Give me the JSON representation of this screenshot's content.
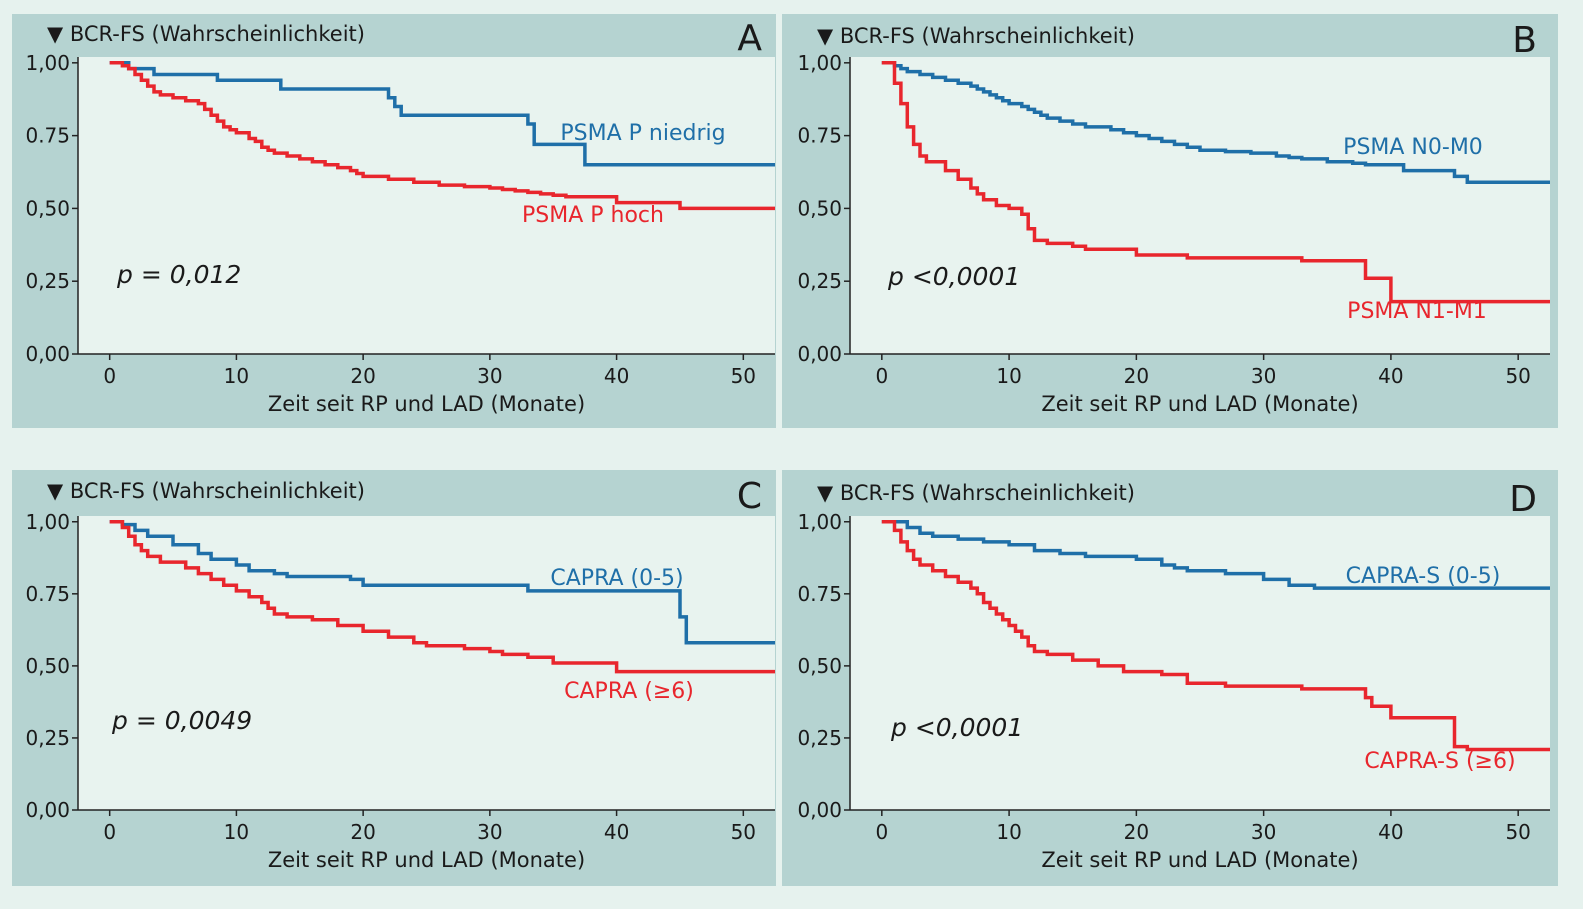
{
  "colors": {
    "page_bg": "#e6f2ee",
    "panel_bg": "#b5d3d1",
    "plot_bg": "#e8f3ef",
    "blue": "#1f6fa8",
    "red": "#e8262d",
    "text": "#1a1a1a"
  },
  "chart_data": [
    {
      "panel": "A",
      "type": "line",
      "step": true,
      "ylabel": "▼ BCR-FS (Wahrscheinlichkeit)",
      "xlabel": "Zeit seit RP und LAD (Monate)",
      "xlim": [
        -2.5,
        52.5
      ],
      "ylim": [
        0,
        1.02
      ],
      "x_ticks": [
        0,
        10,
        20,
        30,
        40,
        50
      ],
      "x_tick_labels": [
        "0",
        "10",
        "20",
        "30",
        "40",
        "50"
      ],
      "y_ticks": [
        0,
        0.25,
        0.5,
        0.75,
        1.0
      ],
      "y_tick_labels": [
        "0,00",
        "0,25",
        "0,50",
        "0.75",
        "1,00"
      ],
      "p_value": "p = 0,012",
      "series": [
        {
          "name": "PSMA P niedrig",
          "color": "blue",
          "x": [
            0,
            1.5,
            3.5,
            8.5,
            13.5,
            22,
            22.5,
            23,
            33,
            33.5,
            37.5,
            52.5
          ],
          "y": [
            1.0,
            0.98,
            0.96,
            0.94,
            0.91,
            0.88,
            0.85,
            0.82,
            0.79,
            0.72,
            0.65,
            0.65
          ]
        },
        {
          "name": "PSMA P hoch",
          "color": "red",
          "x": [
            0,
            1,
            1.5,
            2,
            2.5,
            3,
            3.5,
            4,
            5,
            6,
            7,
            7.5,
            8,
            8.5,
            9,
            9.5,
            10,
            11,
            11.5,
            12,
            12.5,
            13,
            14,
            15,
            16,
            17,
            18,
            19,
            19.5,
            20,
            22,
            24,
            26,
            28,
            30,
            31,
            32,
            33,
            34,
            35,
            36,
            40,
            45,
            52.5
          ],
          "y": [
            1.0,
            0.99,
            0.98,
            0.96,
            0.94,
            0.92,
            0.9,
            0.89,
            0.88,
            0.87,
            0.86,
            0.84,
            0.82,
            0.8,
            0.78,
            0.77,
            0.76,
            0.74,
            0.73,
            0.71,
            0.7,
            0.69,
            0.68,
            0.67,
            0.66,
            0.65,
            0.64,
            0.63,
            0.62,
            0.61,
            0.6,
            0.59,
            0.58,
            0.575,
            0.57,
            0.565,
            0.56,
            0.555,
            0.55,
            0.545,
            0.54,
            0.52,
            0.5,
            0.5
          ]
        }
      ]
    },
    {
      "panel": "B",
      "type": "line",
      "step": true,
      "ylabel": "▼ BCR-FS (Wahrscheinlichkeit)",
      "xlabel": "Zeit seit RP und LAD (Monate)",
      "xlim": [
        -2.5,
        52.5
      ],
      "ylim": [
        0,
        1.02
      ],
      "x_ticks": [
        0,
        10,
        20,
        30,
        40,
        50
      ],
      "x_tick_labels": [
        "0",
        "10",
        "20",
        "30",
        "40",
        "50"
      ],
      "y_ticks": [
        0,
        0.25,
        0.5,
        0.75,
        1.0
      ],
      "y_tick_labels": [
        "0,00",
        "0,25",
        "0,50",
        "0.75",
        "1,00"
      ],
      "p_value": "p <0,0001",
      "series": [
        {
          "name": "PSMA N0-M0",
          "color": "blue",
          "x": [
            0,
            1,
            1.5,
            2,
            3,
            4,
            5,
            6,
            7,
            7.5,
            8,
            8.5,
            9,
            9.5,
            10,
            11,
            11.5,
            12,
            12.5,
            13,
            14,
            15,
            16,
            18,
            19,
            20,
            21,
            22,
            23,
            24,
            25,
            27,
            29,
            31,
            32,
            33,
            35,
            37,
            38,
            41,
            45,
            46,
            52.5
          ],
          "y": [
            1.0,
            0.99,
            0.98,
            0.97,
            0.96,
            0.95,
            0.94,
            0.93,
            0.92,
            0.91,
            0.9,
            0.89,
            0.88,
            0.87,
            0.86,
            0.85,
            0.84,
            0.83,
            0.82,
            0.81,
            0.8,
            0.79,
            0.78,
            0.77,
            0.76,
            0.75,
            0.74,
            0.73,
            0.72,
            0.71,
            0.7,
            0.695,
            0.69,
            0.68,
            0.675,
            0.67,
            0.66,
            0.655,
            0.65,
            0.63,
            0.61,
            0.59,
            0.59
          ]
        },
        {
          "name": "PSMA N1-M1",
          "color": "red",
          "x": [
            0,
            1,
            1.5,
            2,
            2.5,
            3,
            3.5,
            5,
            6,
            7,
            7.5,
            8,
            9,
            10,
            11,
            11.5,
            12,
            13,
            15,
            16,
            20,
            24,
            33,
            38,
            40,
            52.5
          ],
          "y": [
            1.0,
            0.93,
            0.86,
            0.78,
            0.72,
            0.68,
            0.66,
            0.63,
            0.6,
            0.57,
            0.55,
            0.53,
            0.51,
            0.5,
            0.48,
            0.43,
            0.39,
            0.38,
            0.37,
            0.36,
            0.34,
            0.33,
            0.32,
            0.26,
            0.18,
            0.18
          ]
        }
      ]
    },
    {
      "panel": "C",
      "type": "line",
      "step": true,
      "ylabel": "▼ BCR-FS (Wahrscheinlichkeit)",
      "xlabel": "Zeit seit RP und LAD (Monate)",
      "xlim": [
        -2.5,
        52.5
      ],
      "ylim": [
        0,
        1.02
      ],
      "x_ticks": [
        0,
        10,
        20,
        30,
        40,
        50
      ],
      "x_tick_labels": [
        "0",
        "10",
        "20",
        "30",
        "40",
        "50"
      ],
      "y_ticks": [
        0,
        0.25,
        0.5,
        0.75,
        1.0
      ],
      "y_tick_labels": [
        "0,00",
        "0,25",
        "0,50",
        "0.75",
        "1,00"
      ],
      "p_value": "p = 0,0049",
      "series": [
        {
          "name": "CAPRA (0-5)",
          "color": "blue",
          "x": [
            0,
            1,
            2,
            3,
            5,
            7,
            8,
            10,
            11,
            13,
            14,
            19,
            20,
            33,
            45,
            45.5,
            52.5
          ],
          "y": [
            1.0,
            0.99,
            0.97,
            0.95,
            0.92,
            0.89,
            0.87,
            0.85,
            0.83,
            0.82,
            0.81,
            0.8,
            0.78,
            0.76,
            0.67,
            0.58,
            0.58
          ]
        },
        {
          "name": "CAPRA (≥6)",
          "color": "red",
          "x": [
            0,
            1,
            1.5,
            2,
            2.5,
            3,
            4,
            6,
            7,
            8,
            9,
            10,
            11,
            12,
            12.5,
            13,
            14,
            16,
            18,
            20,
            22,
            24,
            25,
            28,
            30,
            31,
            33,
            35,
            40,
            52.5
          ],
          "y": [
            1.0,
            0.98,
            0.95,
            0.92,
            0.9,
            0.88,
            0.86,
            0.84,
            0.82,
            0.8,
            0.78,
            0.76,
            0.74,
            0.72,
            0.7,
            0.68,
            0.67,
            0.66,
            0.64,
            0.62,
            0.6,
            0.58,
            0.57,
            0.56,
            0.55,
            0.54,
            0.53,
            0.51,
            0.48,
            0.48
          ]
        }
      ]
    },
    {
      "panel": "D",
      "type": "line",
      "step": true,
      "ylabel": "▼ BCR-FS (Wahrscheinlichkeit)",
      "xlabel": "Zeit seit RP und LAD (Monate)",
      "xlim": [
        -2.5,
        52.5
      ],
      "ylim": [
        0,
        1.02
      ],
      "x_ticks": [
        0,
        10,
        20,
        30,
        40,
        50
      ],
      "x_tick_labels": [
        "0",
        "10",
        "20",
        "30",
        "40",
        "50"
      ],
      "y_ticks": [
        0,
        0.25,
        0.5,
        0.75,
        1.0
      ],
      "y_tick_labels": [
        "0,00",
        "0,25",
        "0,50",
        "0.75",
        "1,00"
      ],
      "p_value": "p <0,0001",
      "series": [
        {
          "name": "CAPRA-S (0-5)",
          "color": "blue",
          "x": [
            0,
            2,
            3,
            4,
            6,
            8,
            10,
            12,
            14,
            16,
            20,
            22,
            23,
            24,
            27,
            30,
            32,
            34,
            52.5
          ],
          "y": [
            1.0,
            0.98,
            0.96,
            0.95,
            0.94,
            0.93,
            0.92,
            0.9,
            0.89,
            0.88,
            0.87,
            0.85,
            0.84,
            0.83,
            0.82,
            0.8,
            0.78,
            0.77,
            0.77
          ]
        },
        {
          "name": "CAPRA-S (≥6)",
          "color": "red",
          "x": [
            0,
            1,
            1.5,
            2,
            2.5,
            3,
            4,
            5,
            6,
            7,
            7.5,
            8,
            8.5,
            9,
            9.5,
            10,
            10.5,
            11,
            11.5,
            12,
            13,
            15,
            17,
            19,
            22,
            24,
            27,
            33,
            38,
            38.5,
            40,
            45,
            46,
            52.5
          ],
          "y": [
            1.0,
            0.97,
            0.93,
            0.9,
            0.87,
            0.85,
            0.83,
            0.81,
            0.79,
            0.77,
            0.75,
            0.72,
            0.7,
            0.68,
            0.66,
            0.64,
            0.62,
            0.6,
            0.57,
            0.55,
            0.54,
            0.52,
            0.5,
            0.48,
            0.47,
            0.44,
            0.43,
            0.42,
            0.39,
            0.36,
            0.32,
            0.22,
            0.21,
            0.21
          ]
        }
      ]
    }
  ]
}
